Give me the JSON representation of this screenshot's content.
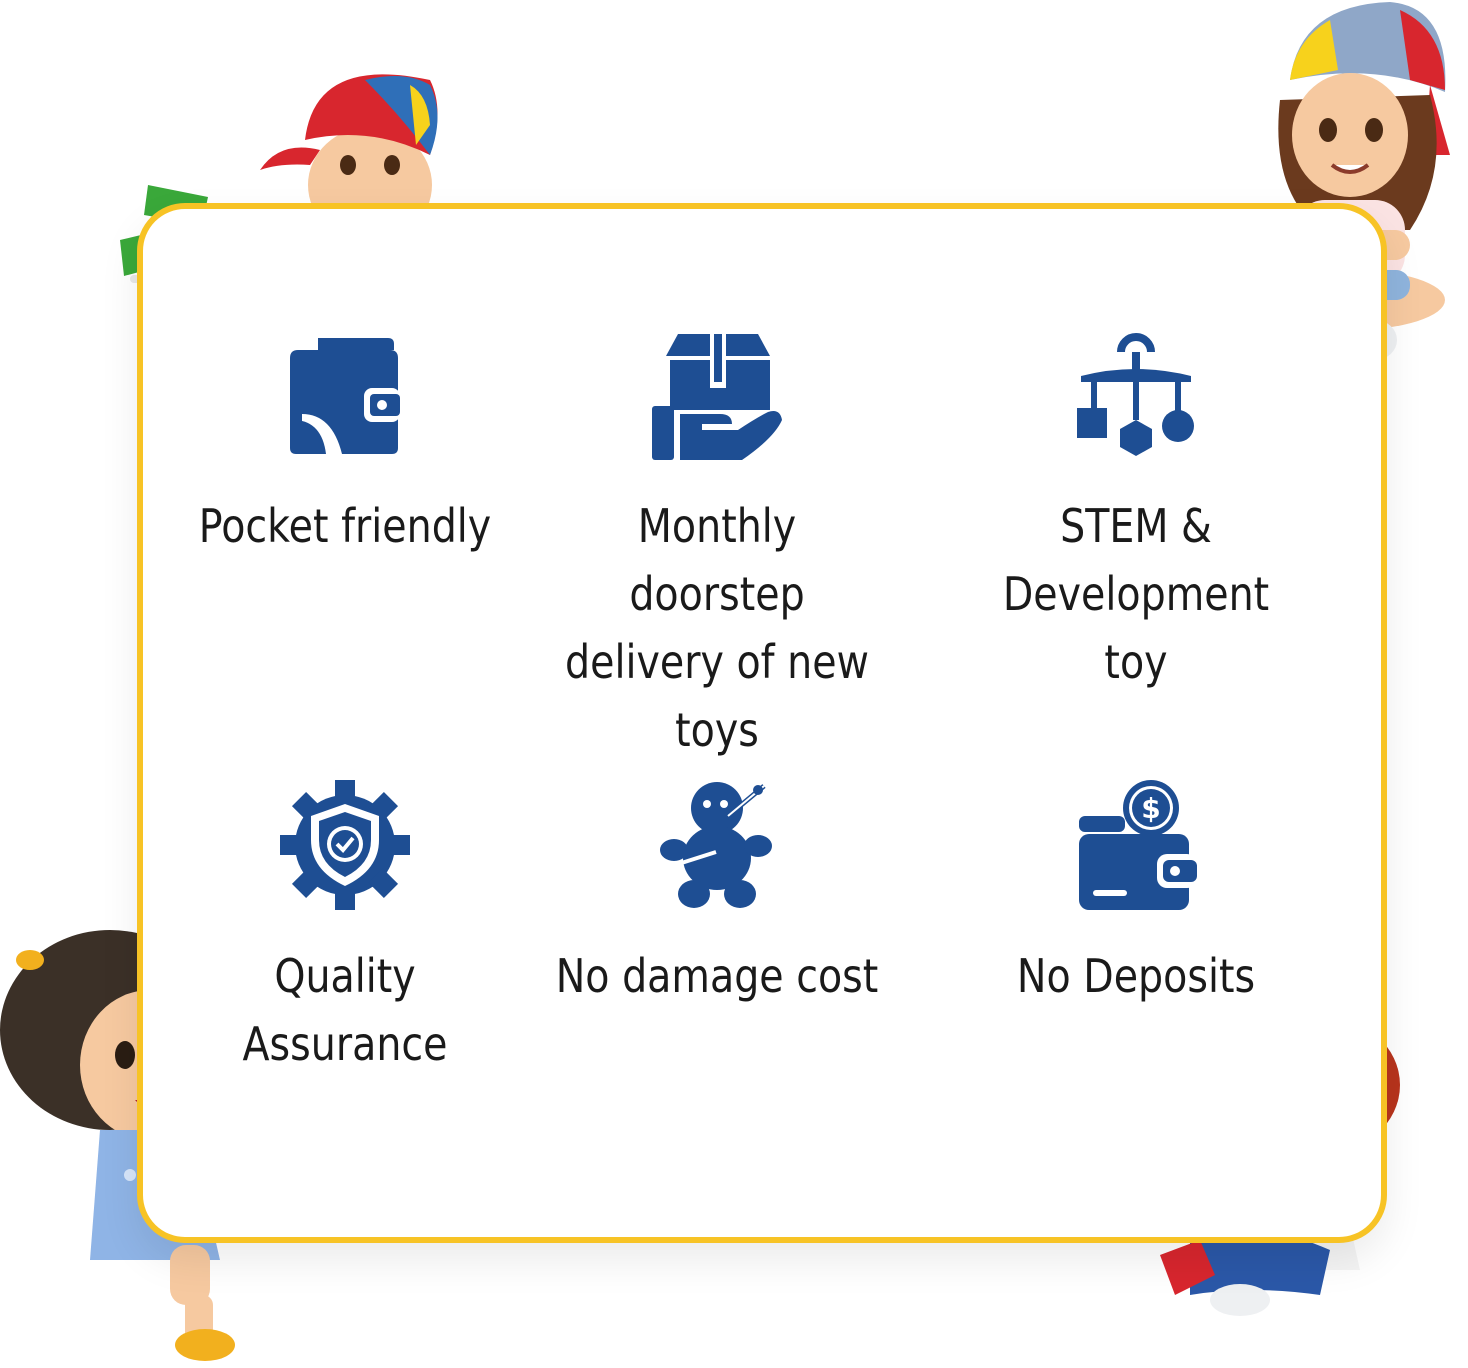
{
  "colors": {
    "frame": "#f7c325",
    "icon": "#1e4e93",
    "text": "#1a1a1a"
  },
  "features": [
    {
      "label": "Pocket friendly",
      "icon": "wallet-icon"
    },
    {
      "label": "Monthly doorstep delivery of new toys",
      "icon": "box-in-hand-icon"
    },
    {
      "label": "STEM & Development toy",
      "icon": "hanging-mobile-icon"
    },
    {
      "label": "Quality Assurance",
      "icon": "shield-check-gear-icon"
    },
    {
      "label": "No damage cost",
      "icon": "broken-toy-icon"
    },
    {
      "label": "No Deposits",
      "icon": "wallet-dollar-icon"
    }
  ],
  "illustrations": [
    "girl-lying-icon",
    "girl-sitting-cap-icon",
    "girl-sitting-blue-dress-icon",
    "boy-pointing-icon"
  ]
}
